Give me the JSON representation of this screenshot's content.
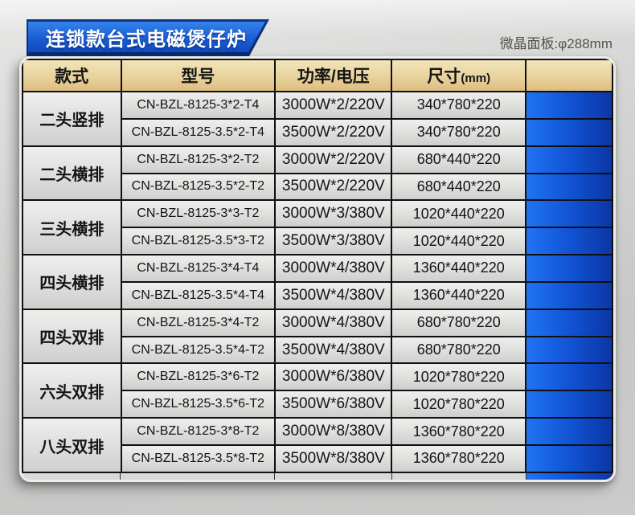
{
  "banner": {
    "title": "连锁款台式电磁煲仔炉"
  },
  "note": "微晶面板:φ288mm",
  "colors": {
    "banner_blue": "#1a5dd4",
    "banner_edge_navy": "#0a2a6c",
    "header_tan": "#e8d29c",
    "swatch_blue_left": "#2173f4",
    "swatch_blue_right": "#0a36a6",
    "grid_border": "#101010"
  },
  "table": {
    "headers": {
      "style": "款式",
      "model": "型号",
      "power": "功率/电压",
      "size": "尺寸",
      "size_unit": "(mm)"
    },
    "groups": [
      {
        "style": "二头竖排",
        "rows": [
          {
            "model": "CN-BZL-8125-3*2-T4",
            "power": "3000W*2/220V",
            "size": "340*780*220"
          },
          {
            "model": "CN-BZL-8125-3.5*2-T4",
            "power": "3500W*2/220V",
            "size": "340*780*220"
          }
        ]
      },
      {
        "style": "二头横排",
        "rows": [
          {
            "model": "CN-BZL-8125-3*2-T2",
            "power": "3000W*2/220V",
            "size": "680*440*220"
          },
          {
            "model": "CN-BZL-8125-3.5*2-T2",
            "power": "3500W*2/220V",
            "size": "680*440*220"
          }
        ]
      },
      {
        "style": "三头横排",
        "rows": [
          {
            "model": "CN-BZL-8125-3*3-T2",
            "power": "3000W*3/380V",
            "size": "1020*440*220"
          },
          {
            "model": "CN-BZL-8125-3.5*3-T2",
            "power": "3500W*3/380V",
            "size": "1020*440*220"
          }
        ]
      },
      {
        "style": "四头横排",
        "rows": [
          {
            "model": "CN-BZL-8125-3*4-T4",
            "power": "3000W*4/380V",
            "size": "1360*440*220"
          },
          {
            "model": "CN-BZL-8125-3.5*4-T4",
            "power": "3500W*4/380V",
            "size": "1360*440*220"
          }
        ]
      },
      {
        "style": "四头双排",
        "rows": [
          {
            "model": "CN-BZL-8125-3*4-T2",
            "power": "3000W*4/380V",
            "size": "680*780*220"
          },
          {
            "model": "CN-BZL-8125-3.5*4-T2",
            "power": "3500W*4/380V",
            "size": "680*780*220"
          }
        ]
      },
      {
        "style": "六头双排",
        "rows": [
          {
            "model": "CN-BZL-8125-3*6-T2",
            "power": "3000W*6/380V",
            "size": "1020*780*220"
          },
          {
            "model": "CN-BZL-8125-3.5*6-T2",
            "power": "3500W*6/380V",
            "size": "1020*780*220"
          }
        ]
      },
      {
        "style": "八头双排",
        "rows": [
          {
            "model": "CN-BZL-8125-3*8-T2",
            "power": "3000W*8/380V",
            "size": "1360*780*220"
          },
          {
            "model": "CN-BZL-8125-3.5*8-T2",
            "power": "3500W*8/380V",
            "size": "1360*780*220"
          }
        ]
      }
    ]
  }
}
